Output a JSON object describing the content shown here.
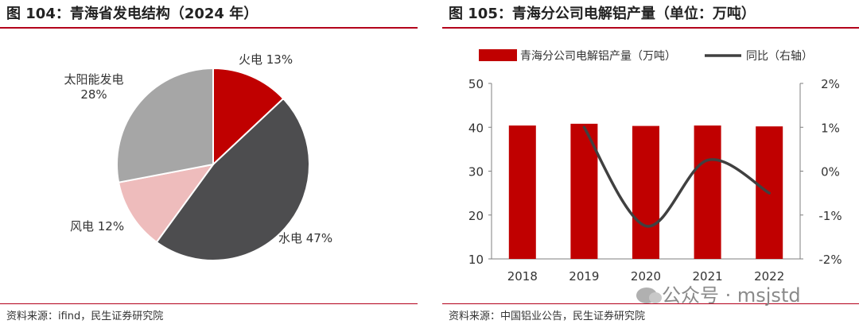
{
  "left": {
    "title": "图 104：青海省发电结构（2024 年）",
    "source": "资料来源：ifind，民生证券研究院"
  },
  "right": {
    "title": "图 105：青海分公司电解铝产量（单位：万吨）",
    "source": "资料来源：中国铝业公告，民生证券研究院"
  },
  "watermark": "公众号 · msjstd",
  "colors": {
    "red": "#c00000",
    "darkgray": "#4d4d4f",
    "pink": "#eebcbc",
    "gray": "#a6a6a6",
    "line": "#404040",
    "rule": "#b3001b"
  },
  "chart_data": [
    {
      "type": "pie",
      "title": "青海省发电结构（2024 年）",
      "slices": [
        {
          "name": "火电",
          "value": 13,
          "label": "火电 13%",
          "color": "#c00000"
        },
        {
          "name": "水电",
          "value": 47,
          "label": "水电 47%",
          "color": "#4d4d4f"
        },
        {
          "name": "风电",
          "value": 12,
          "label": "风电 12%",
          "color": "#eebcbc"
        },
        {
          "name": "太阳能发电",
          "value": 28,
          "label_line1": "太阳能发电",
          "label_line2": "28%",
          "color": "#a6a6a6"
        }
      ]
    },
    {
      "type": "bar",
      "title": "青海分公司电解铝产量（单位：万吨）",
      "categories": [
        "2018",
        "2019",
        "2020",
        "2021",
        "2022"
      ],
      "series": [
        {
          "name": "青海分公司电解铝产量（万吨）",
          "type": "bar",
          "axis": "left",
          "values": [
            40.4,
            40.8,
            40.3,
            40.4,
            40.2
          ]
        },
        {
          "name": "同比（右轴）",
          "type": "line",
          "axis": "right",
          "values": [
            null,
            1.0,
            -1.25,
            0.25,
            -0.5
          ]
        }
      ],
      "ylim": [
        10,
        50
      ],
      "yticks": [
        "10",
        "20",
        "30",
        "40",
        "50"
      ],
      "y2lim": [
        -2,
        2
      ],
      "y2ticks": [
        "-2%",
        "-1%",
        "0%",
        "1%",
        "2%"
      ],
      "legend": [
        "青海分公司电解铝产量（万吨）",
        "同比（右轴）"
      ]
    }
  ]
}
